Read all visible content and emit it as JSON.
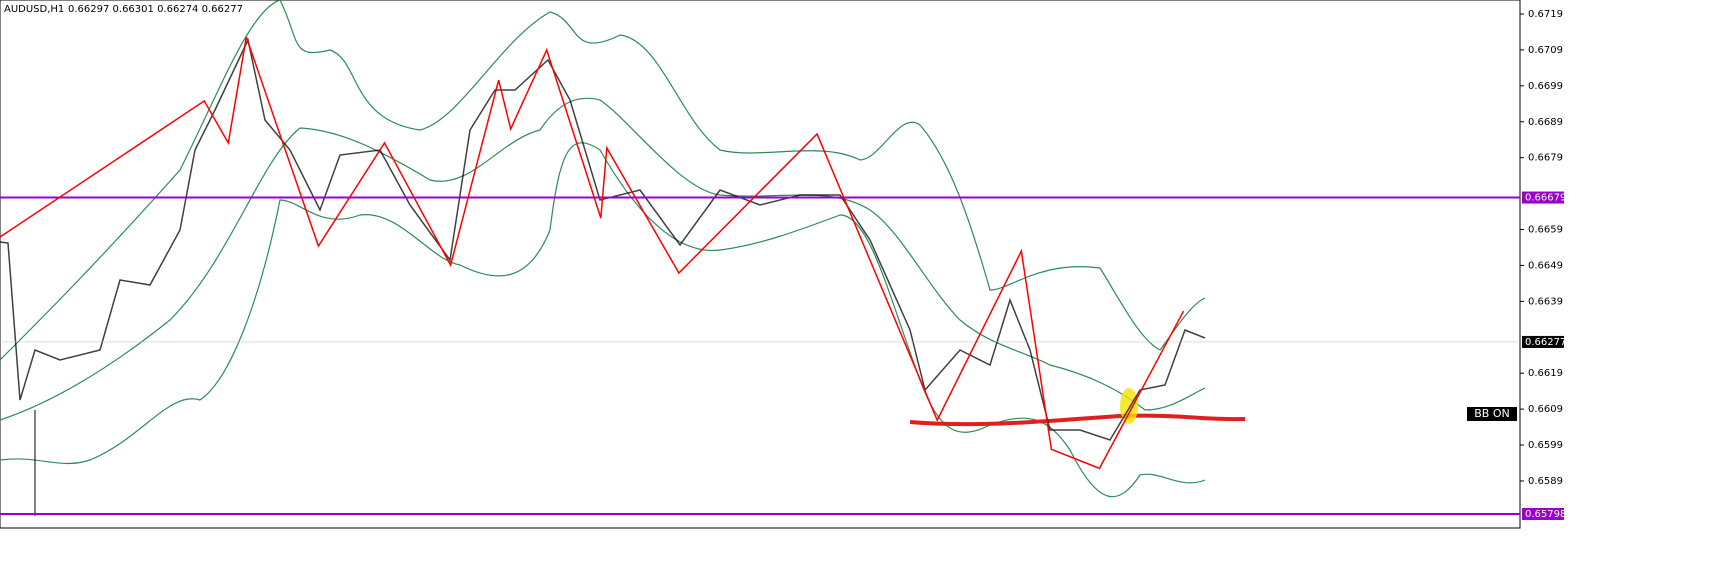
{
  "header": {
    "symbol": "AUDUSD,H1",
    "quote": "0.66297 0.66301 0.66274 0.66277"
  },
  "chart_data": {
    "type": "zigzag",
    "ylim": [
      0.65798,
      0.6719
    ],
    "xlim": [
      0,
      253
    ],
    "yticks": [
      0.6719,
      0.6709,
      0.6699,
      0.6689,
      0.6679,
      0.6659,
      0.6649,
      0.6639,
      0.6619,
      0.6609,
      0.6599,
      0.6589
    ],
    "levels": [
      {
        "value": 0.66679,
        "label": "0.66679",
        "color": "#9900cc"
      },
      {
        "value": 0.65798,
        "label": "0.65798",
        "color": "#9900cc"
      }
    ],
    "current": {
      "value": 0.66277,
      "label": "0.66277",
      "color": "#000000"
    },
    "zigzag": {
      "color": "#ff0000",
      "x": [
        0,
        34,
        38,
        41,
        53,
        64,
        75,
        83,
        85,
        91,
        100,
        101,
        113,
        136,
        156,
        170,
        175,
        183,
        197
      ],
      "values": [
        0.66569,
        0.66948,
        0.66831,
        0.67126,
        0.66544,
        0.66831,
        0.66491,
        0.67006,
        0.6687,
        0.6709,
        0.66622,
        0.66817,
        0.66469,
        0.66856,
        0.66059,
        0.6653,
        0.65978,
        0.65925,
        0.66363
      ]
    },
    "annotation": "BB ON"
  }
}
